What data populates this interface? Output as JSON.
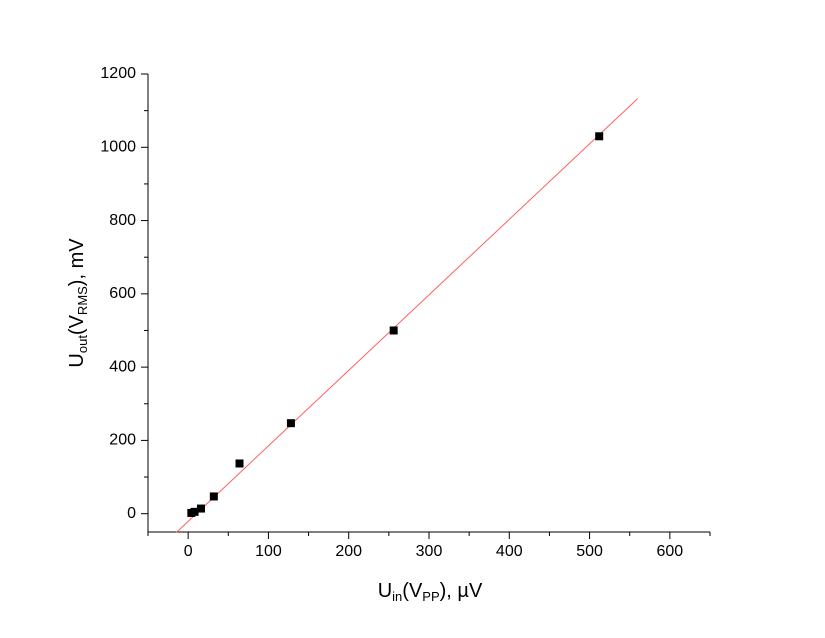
{
  "chart_data": {
    "type": "scatter",
    "xlabel": [
      "U",
      "in",
      "(V",
      "PP",
      "), µV"
    ],
    "ylabel": [
      "U",
      "out",
      "(V",
      "RMS",
      "), mV"
    ],
    "x": [
      4,
      8,
      16,
      32,
      64,
      128,
      256,
      512
    ],
    "values": [
      2,
      5,
      14,
      47,
      137,
      247,
      500,
      1030
    ],
    "color": "#000000",
    "fit_line": {
      "x": [
        -15,
        560
      ],
      "y": [
        -52,
        1133
      ],
      "color": "#ff6060"
    },
    "xlim": [
      -50,
      650
    ],
    "ylim": [
      -50,
      1200
    ],
    "xticks": [
      0,
      100,
      200,
      300,
      400,
      500,
      600
    ],
    "yticks": [
      0,
      200,
      400,
      600,
      800,
      1000,
      1200
    ],
    "xminorticks": [
      -50,
      50,
      150,
      250,
      350,
      450,
      550,
      650
    ],
    "yminorticks": [
      100,
      300,
      500,
      700,
      900,
      1100
    ]
  }
}
